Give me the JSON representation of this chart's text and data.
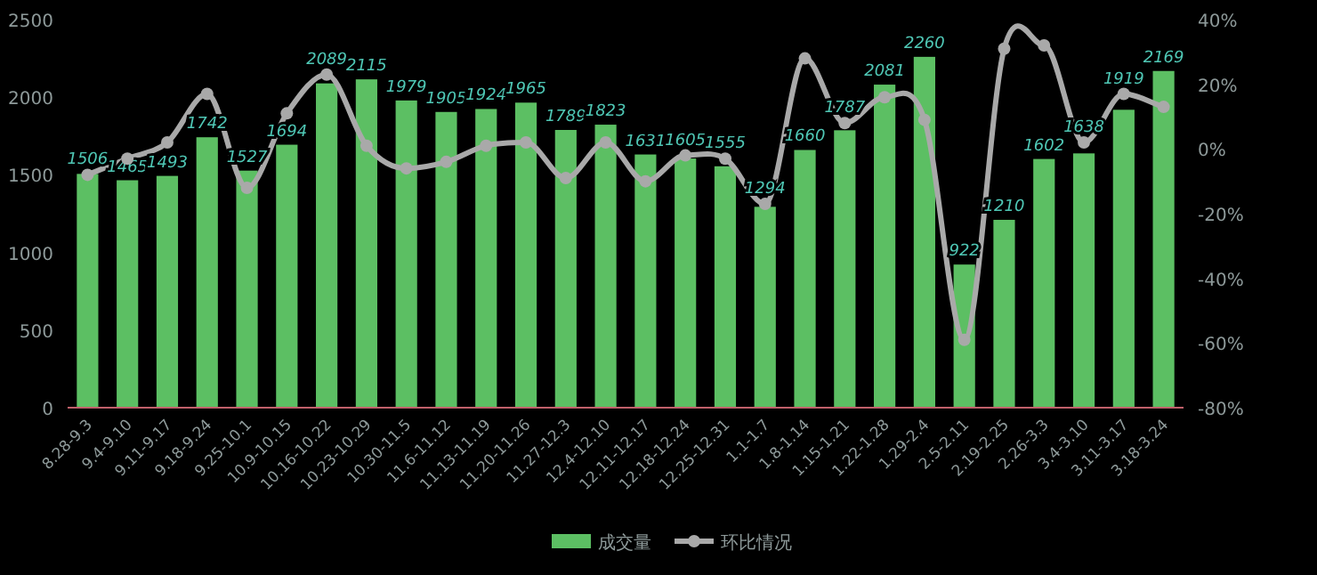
{
  "chart_data": {
    "type": "bar",
    "categories": [
      "8.28-9.3",
      "9.4-9.10",
      "9.11-9.17",
      "9.18-9.24",
      "9.25-10.1",
      "10.9-10.15",
      "10.16-10.22",
      "10.23-10.29",
      "10.30-11.5",
      "11.6-11.12",
      "11.13-11.19",
      "11.20-11.26",
      "11.27-12.3",
      "12.4-12.10",
      "12.11-12.17",
      "12.18-12.24",
      "12.25-12.31",
      "1.1-1.7",
      "1.8-1.14",
      "1.15-1.21",
      "1.22-1.28",
      "1.29-2.4",
      "2.5-2.11",
      "2.19-2.25",
      "2.26-3.3",
      "3.4-3.10",
      "3.11-3.17",
      "3.18-3.24"
    ],
    "series": [
      {
        "name": "成交量",
        "color": "#5cbf63",
        "values": [
          1506,
          1465,
          1493,
          1742,
          1527,
          1694,
          2089,
          2115,
          1979,
          1905,
          1924,
          1965,
          1789,
          1823,
          1631,
          1605,
          1555,
          1294,
          1660,
          1787,
          2081,
          2260,
          922,
          1210,
          1602,
          1638,
          1919,
          2169
        ],
        "value_labels": [
          "1506",
          "1465",
          "1493",
          "1742",
          "1527",
          "1694",
          "2089",
          "2115",
          "1979",
          "1905",
          "1924",
          "1965",
          "1789",
          "1823",
          "1631",
          "1605",
          "1555",
          "1294",
          "1660",
          "1787",
          "2081",
          "2260",
          "922",
          "1210",
          "1602",
          "1638",
          "1919",
          "2169"
        ]
      },
      {
        "name": "环比情况",
        "type": "line",
        "axis": "y2",
        "color": "#a9a9a9",
        "values": [
          -8,
          -3,
          2,
          17,
          -12,
          11,
          23,
          1,
          -6,
          -4,
          1,
          2,
          -9,
          2,
          -10,
          -2,
          -3,
          -17,
          28,
          8,
          16,
          9,
          -59,
          31,
          32,
          2,
          17,
          13
        ]
      }
    ],
    "ylim": [
      0,
      2500
    ],
    "yticks": [
      0,
      500,
      1000,
      1500,
      2000,
      2500
    ],
    "y2lim": [
      -80,
      40
    ],
    "y2ticks": [
      {
        "value": -80,
        "label": "-80%"
      },
      {
        "value": -60,
        "label": "-60%"
      },
      {
        "value": -40,
        "label": "-40%"
      },
      {
        "value": -20,
        "label": "-20%"
      },
      {
        "value": 0,
        "label": "0%"
      },
      {
        "value": 20,
        "label": "20%"
      },
      {
        "value": 40,
        "label": "40%"
      }
    ],
    "grid": false,
    "legend": "bottom",
    "marker": "circle",
    "line_style": "solid"
  }
}
